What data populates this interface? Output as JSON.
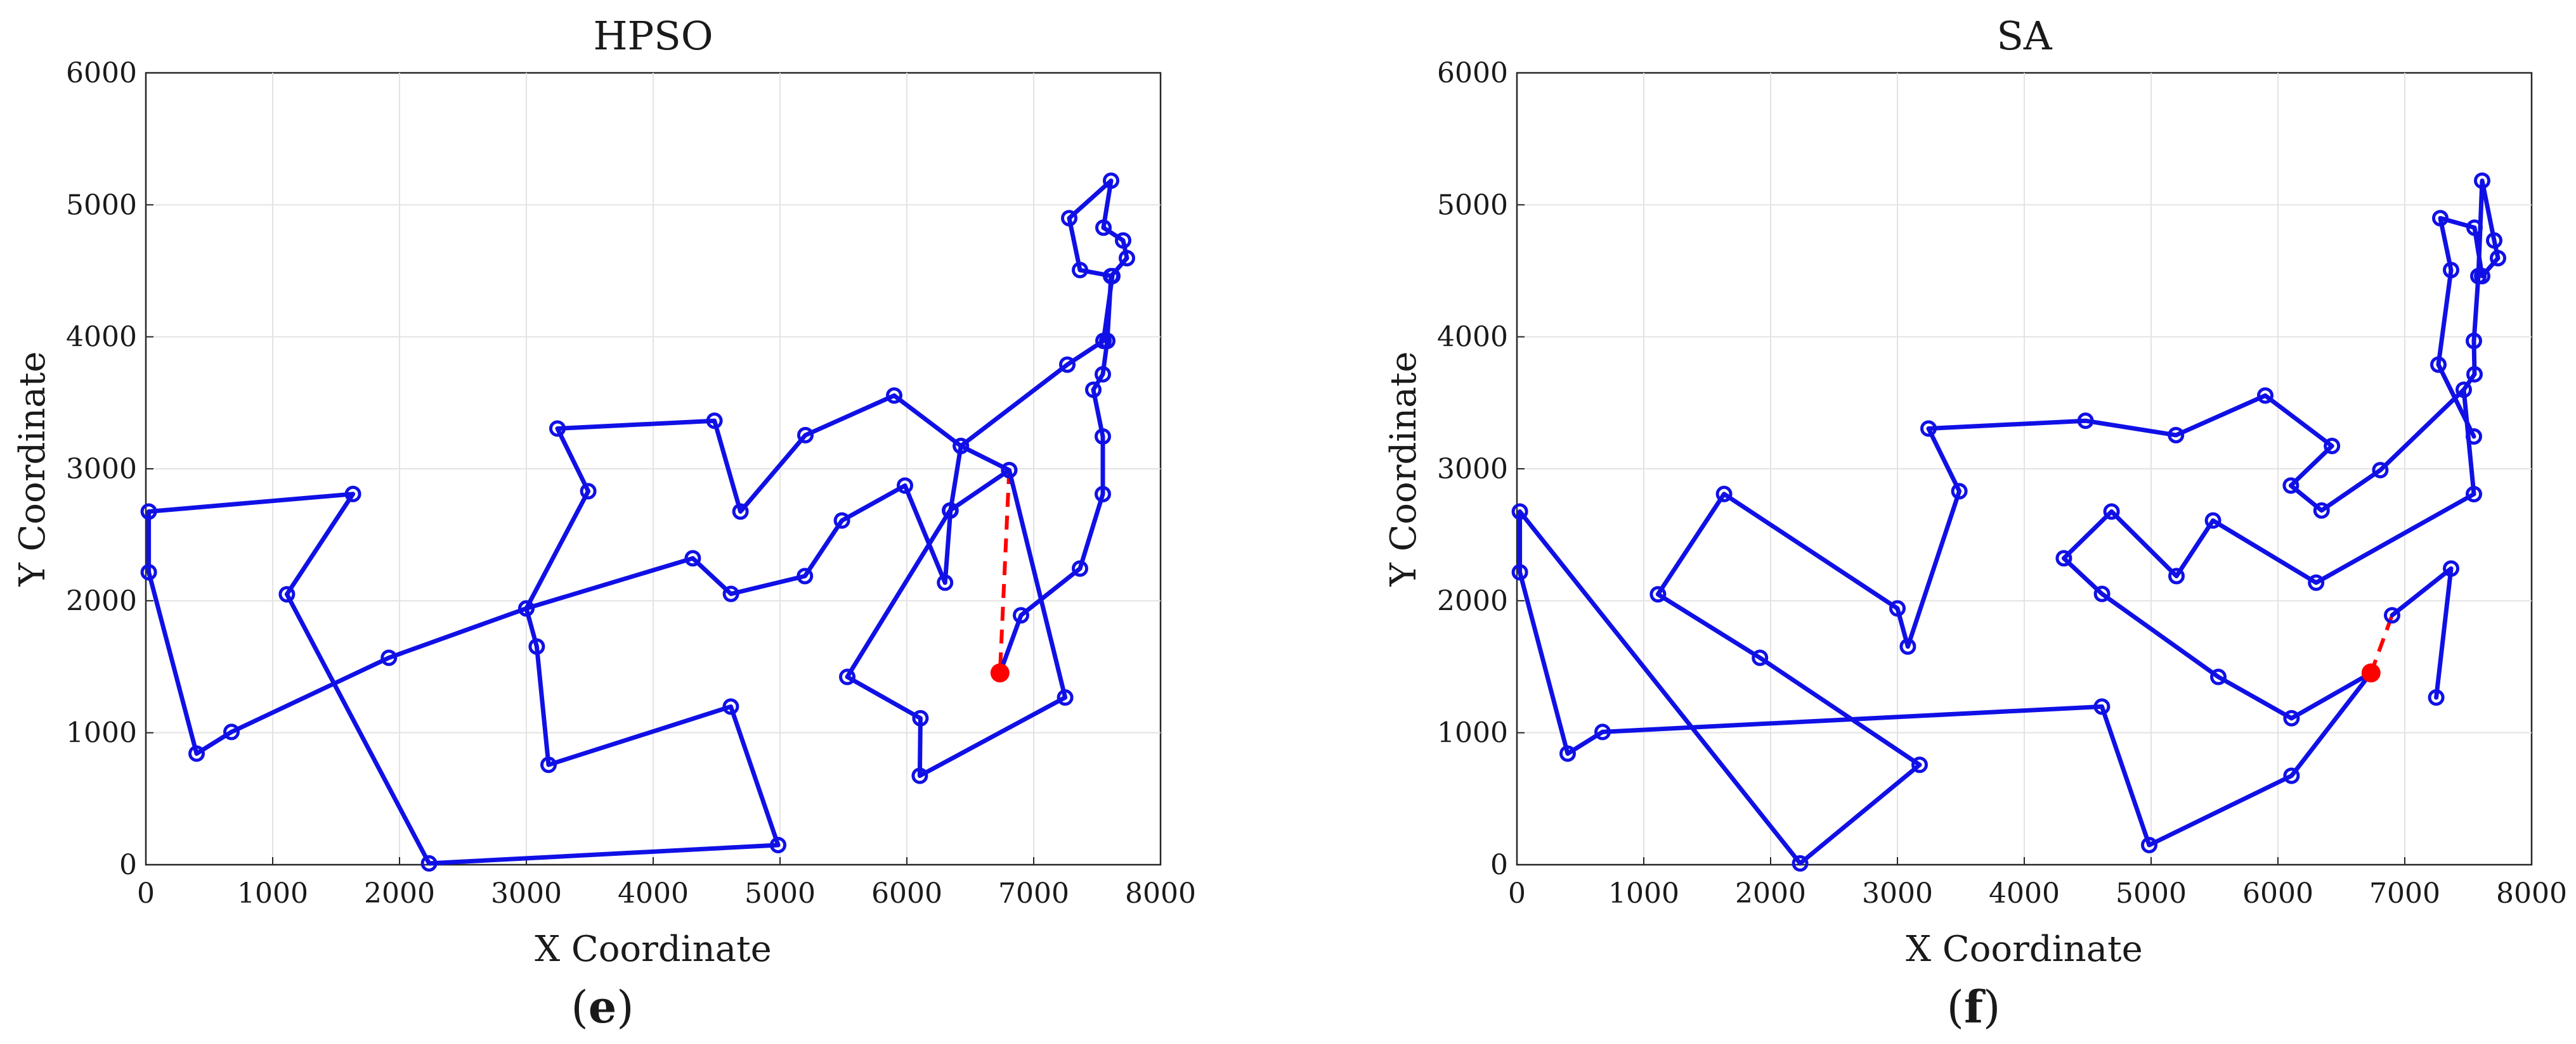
{
  "figure": {
    "colors": {
      "route": "#1010e6",
      "start": "#ff0000",
      "closing": "#ff0000",
      "grid": "#e3e3e3",
      "axes": "#262626"
    }
  },
  "chart_data": [
    {
      "type": "line",
      "title": "HPSO",
      "xlabel": "X Coordinate",
      "ylabel": "Y Coordinate",
      "xlim": [
        0,
        8000
      ],
      "ylim": [
        0,
        6000
      ],
      "xticks": [
        0,
        1000,
        2000,
        3000,
        4000,
        5000,
        6000,
        7000,
        8000
      ],
      "yticks": [
        0,
        1000,
        2000,
        3000,
        4000,
        5000,
        6000
      ],
      "grid": true,
      "caption": {
        "open": "(",
        "letter": "e",
        "close": ")"
      },
      "start_point": [
        6734,
        1453
      ],
      "series": [
        {
          "x": [
            6734,
            6900,
            7365,
            7545,
            7545,
            7470,
            7545,
            7580,
            7610,
            7735,
            7705,
            7550,
            7610,
            7280,
            7365,
            7620,
            7550,
            7265,
            6426,
            6344,
            6301,
            5985,
            5488,
            5196,
            4613,
            4312,
            3000,
            1916,
            675,
            400,
            23,
            23,
            1633,
            1112,
            2233,
            4985,
            4612,
            3175,
            3082,
            3000,
            3488,
            3245,
            4483,
            4688,
            5200,
            5900,
            6426,
            6807,
            7248,
            6102,
            6107,
            5530,
            6340,
            6807
          ],
          "y": [
            1453,
            1890,
            2244,
            2808,
            3245,
            3599,
            3716,
            3969,
            4460,
            4596,
            4730,
            4827,
            5183,
            4899,
            4506,
            4460,
            3969,
            3789,
            3173,
            2684,
            2137,
            2873,
            2608,
            2187,
            2052,
            2322,
            1942,
            1568,
            1006,
            842,
            2216,
            2676,
            2809,
            2049,
            10,
            149,
            1198,
            757,
            1653,
            1942,
            2830,
            3305,
            3364,
            2676,
            3255,
            3555,
            3173,
            2990,
            1267,
            674,
            1110,
            1423,
            2684,
            2990
          ]
        }
      ]
    },
    {
      "type": "line",
      "title": "SA",
      "xlabel": "X Coordinate",
      "ylabel": "Y Coordinate",
      "xlim": [
        0,
        8000
      ],
      "ylim": [
        0,
        6000
      ],
      "xticks": [
        0,
        1000,
        2000,
        3000,
        4000,
        5000,
        6000,
        7000,
        8000
      ],
      "yticks": [
        0,
        1000,
        2000,
        3000,
        4000,
        5000,
        6000
      ],
      "grid": true,
      "caption": {
        "open": "(",
        "letter": "f",
        "close": ")"
      },
      "start_point": [
        6734,
        1453
      ],
      "series": [
        {
          "x": [
            6734,
            6107,
            5530,
            4613,
            4312,
            4688,
            5200,
            5488,
            6301,
            7545,
            7465,
            6807,
            6344,
            6102,
            6426,
            5900,
            5196,
            4483,
            3245,
            3488,
            3082,
            3000,
            1633,
            1112,
            1916,
            3175,
            2233,
            23,
            23,
            400,
            675,
            4612,
            4985,
            6107,
            6734
          ],
          "y": [
            1453,
            1110,
            1423,
            2052,
            2322,
            2676,
            2187,
            2608,
            2137,
            2808,
            3599,
            2990,
            2684,
            2873,
            3173,
            3555,
            3255,
            3364,
            3305,
            2830,
            1653,
            1942,
            2809,
            2049,
            1568,
            757,
            10,
            2676,
            2216,
            842,
            1006,
            1198,
            149,
            674,
            1453
          ]
        },
        {
          "x": [
            6734,
            7248,
            7365,
            6900
          ],
          "y": [
            1453,
            1267,
            2244,
            1890
          ]
        },
        {
          "x": [
            7465,
            7550,
            7545,
            7580,
            7610,
            7705,
            7735,
            7610,
            7550,
            7280,
            7365,
            7265,
            7545
          ],
          "y": [
            3599,
            3716,
            3969,
            4460,
            5183,
            4730,
            4596,
            4460,
            4827,
            4899,
            4506,
            3789,
            3245
          ]
        }
      ]
    }
  ]
}
